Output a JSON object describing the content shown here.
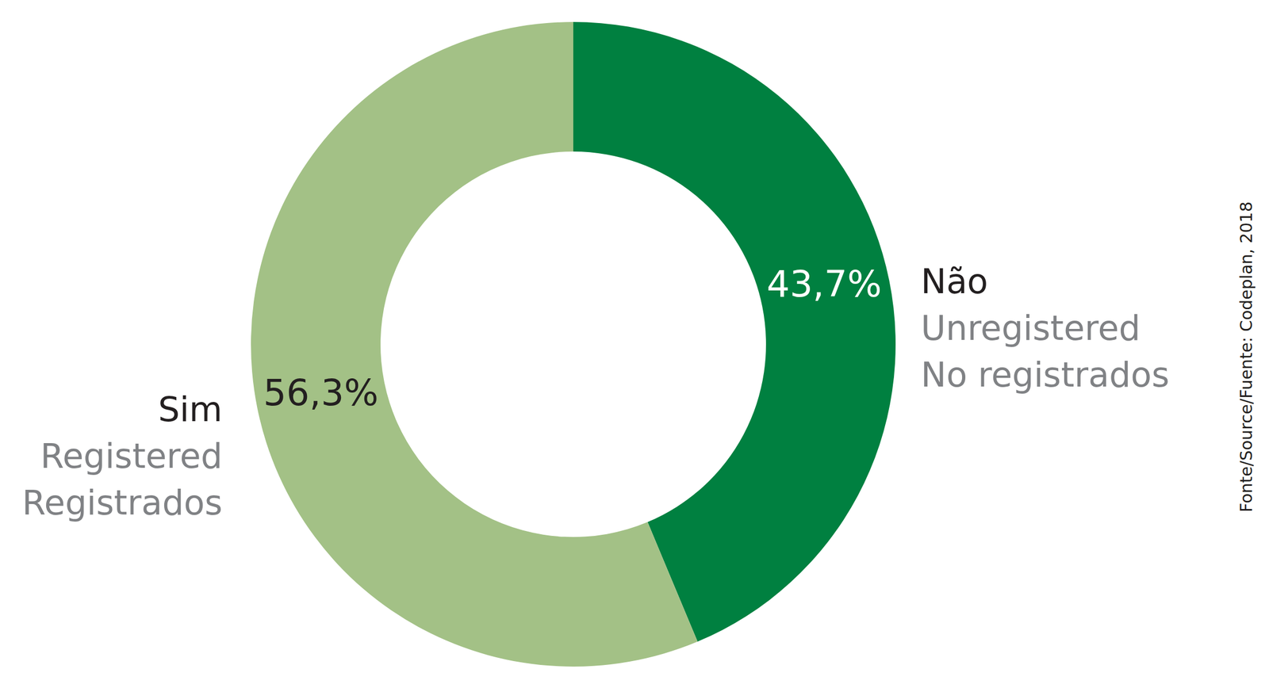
{
  "chart_data": {
    "type": "pie",
    "categories": [
      "Não",
      "Sim"
    ],
    "category_subtitles": [
      [
        "Unregistered",
        "No registrados"
      ],
      [
        "Registered",
        "Registrados"
      ]
    ],
    "values": [
      43.7,
      56.3
    ],
    "value_labels": [
      "43,7%",
      "56,3%"
    ],
    "colors": [
      "#008040",
      "#a3c186"
    ],
    "data_labels": true,
    "source": "Fonte/Source/Fuente: Codeplan, 2018"
  }
}
